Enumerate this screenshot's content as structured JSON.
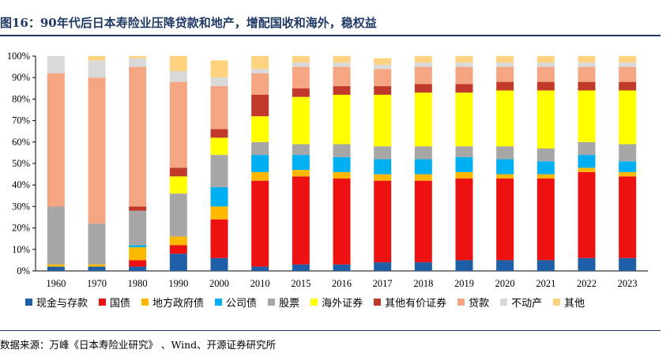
{
  "title": "图16：90年代后日本寿险业压降贷款和地产，增配国收和海外，稳权益",
  "source": "数据来源：万峰《日本寿险业研究》 、Wind、开源证券研究所",
  "chart_data": {
    "type": "bar",
    "stacked": true,
    "ylim": [
      0,
      100
    ],
    "yticks": [
      "0%",
      "10%",
      "20%",
      "30%",
      "40%",
      "50%",
      "60%",
      "70%",
      "80%",
      "90%",
      "100%"
    ],
    "categories": [
      "1960",
      "1970",
      "1980",
      "1990",
      "2000",
      "2010",
      "2015",
      "2016",
      "2017",
      "2018",
      "2019",
      "2020",
      "2021",
      "2022",
      "2023"
    ],
    "series": [
      {
        "name": "现金与存款",
        "color": "#1f5fa8",
        "values": [
          2,
          2,
          2,
          8,
          6,
          2,
          3,
          3,
          4,
          4,
          5,
          5,
          5,
          6,
          6
        ]
      },
      {
        "name": "国债",
        "color": "#ee1111",
        "values": [
          0,
          0,
          3,
          4,
          18,
          40,
          41,
          40,
          38,
          38,
          38,
          38,
          38,
          40,
          38
        ]
      },
      {
        "name": "地方政府债",
        "color": "#ffb800",
        "values": [
          1,
          1,
          6,
          4,
          6,
          4,
          3,
          3,
          3,
          3,
          3,
          2,
          2,
          2,
          2
        ]
      },
      {
        "name": "公司债",
        "color": "#00b0f0",
        "values": [
          0,
          0,
          1,
          0,
          9,
          8,
          7,
          7,
          7,
          7,
          7,
          7,
          6,
          6,
          5
        ]
      },
      {
        "name": "股票",
        "color": "#a6a6a6",
        "values": [
          27,
          19,
          16,
          20,
          15,
          6,
          5,
          6,
          6,
          6,
          5,
          6,
          6,
          6,
          8
        ]
      },
      {
        "name": "海外证券",
        "color": "#ffff00",
        "values": [
          0,
          0,
          0,
          8,
          8,
          12,
          22,
          23,
          24,
          25,
          25,
          26,
          27,
          24,
          25
        ]
      },
      {
        "name": "其他有价证券",
        "color": "#c0392b",
        "values": [
          0,
          0,
          2,
          4,
          4,
          10,
          4,
          4,
          4,
          4,
          4,
          4,
          4,
          4,
          4
        ]
      },
      {
        "name": "贷款",
        "color": "#f4a582",
        "values": [
          62,
          68,
          65,
          40,
          20,
          10,
          10,
          9,
          8,
          8,
          8,
          7,
          7,
          7,
          7
        ]
      },
      {
        "name": "不动产",
        "color": "#d9d9d9",
        "values": [
          8,
          8,
          4,
          5,
          4,
          2,
          2,
          2,
          2,
          2,
          2,
          2,
          2,
          2,
          2
        ]
      },
      {
        "name": "其他",
        "color": "#ffd27f",
        "values": [
          0,
          2,
          1,
          7,
          8,
          6,
          3,
          3,
          3,
          3,
          3,
          3,
          3,
          3,
          3
        ]
      }
    ]
  }
}
